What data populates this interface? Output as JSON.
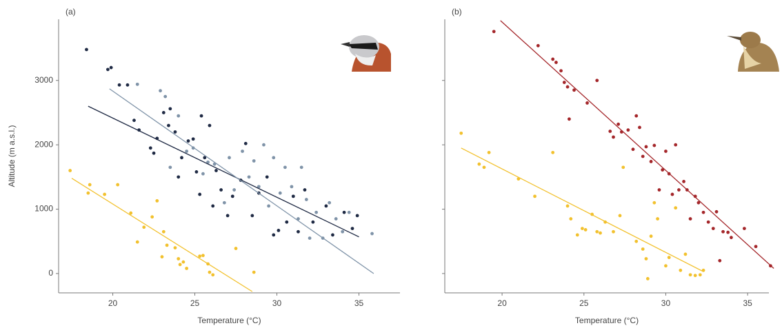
{
  "chart_data": [
    {
      "type": "scatter",
      "annotation": "(a)",
      "x_label": "Temperature (°C)",
      "y_label": "Altitude (m a.s.l.)",
      "xlim": [
        16.7,
        37.5
      ],
      "ylim": [
        -300,
        3950
      ],
      "xticks": [
        20,
        25,
        30,
        35
      ],
      "yticks": [
        0,
        1000,
        2000,
        3000
      ],
      "show_ytick_labels": true,
      "series": [
        {
          "color": "#f2c12e",
          "x": [
            17.4,
            18.5,
            18.6,
            19.5,
            20.3,
            21.1,
            21.5,
            21.9,
            22.4,
            22.7,
            23.0,
            23.1,
            23.3,
            23.8,
            24.0,
            24.1,
            24.3,
            24.5,
            25.3,
            25.5,
            25.8,
            25.9,
            26.1,
            27.5,
            28.6
          ],
          "values": [
            1600,
            1250,
            1380,
            1230,
            1380,
            940,
            490,
            720,
            880,
            1130,
            260,
            650,
            440,
            400,
            230,
            140,
            180,
            80,
            270,
            280,
            150,
            20,
            -20,
            390,
            20
          ],
          "trend": {
            "x": [
              17.5,
              28.5
            ],
            "values": [
              1480,
              -280
            ]
          }
        },
        {
          "color": "#1f2a44",
          "x": [
            18.4,
            19.7,
            19.9,
            20.4,
            20.9,
            21.3,
            21.6,
            22.3,
            22.5,
            22.7,
            23.1,
            23.4,
            23.5,
            23.8,
            24.0,
            24.2,
            24.6,
            24.9,
            25.1,
            25.3,
            25.4,
            25.6,
            25.9,
            26.1,
            26.3,
            26.6,
            27.0,
            27.3,
            27.8,
            28.1,
            28.5,
            28.9,
            29.4,
            29.8,
            30.1,
            30.6,
            31.0,
            31.3,
            31.7,
            32.2,
            33.0,
            33.4,
            34.1,
            34.6,
            34.9
          ],
          "values": [
            3480,
            3170,
            3200,
            2930,
            2930,
            2380,
            2230,
            1950,
            1870,
            2100,
            2500,
            2300,
            2560,
            2200,
            1500,
            1800,
            2060,
            2090,
            1580,
            1230,
            2450,
            1800,
            2300,
            1050,
            1600,
            1300,
            900,
            1200,
            1450,
            2020,
            900,
            1250,
            1500,
            600,
            670,
            800,
            1200,
            650,
            1300,
            800,
            1050,
            600,
            950,
            700,
            900
          ],
          "trend": {
            "x": [
              18.5,
              35
            ],
            "values": [
              2600,
              570
            ]
          }
        },
        {
          "color": "#7f93a8",
          "x": [
            21.5,
            22.9,
            23.2,
            23.5,
            24.0,
            24.5,
            24.9,
            25.5,
            25.8,
            26.2,
            26.8,
            27.1,
            27.4,
            27.9,
            28.3,
            28.6,
            28.9,
            29.2,
            29.5,
            29.8,
            30.2,
            30.5,
            30.9,
            31.3,
            31.5,
            31.8,
            32.0,
            32.4,
            32.8,
            33.2,
            33.6,
            34.0,
            34.4,
            35.8
          ],
          "values": [
            2940,
            2840,
            2750,
            1650,
            2450,
            1900,
            1950,
            1550,
            1730,
            1700,
            1100,
            1800,
            1300,
            1900,
            1500,
            1750,
            1350,
            2000,
            1050,
            1800,
            1250,
            1650,
            1350,
            850,
            1650,
            1150,
            550,
            950,
            550,
            1100,
            850,
            650,
            950,
            620
          ],
          "trend": {
            "x": [
              19.8,
              35.9
            ],
            "values": [
              2870,
              0
            ]
          }
        }
      ]
    },
    {
      "type": "scatter",
      "annotation": "(b)",
      "x_label": "Temperature (°C)",
      "xlim": [
        16.5,
        36.3
      ],
      "ylim": [
        -300,
        3950
      ],
      "xticks": [
        20,
        25,
        30,
        35
      ],
      "yticks": [
        0,
        1000,
        2000,
        3000
      ],
      "show_ytick_labels": false,
      "series": [
        {
          "color": "#f2c12e",
          "x": [
            17.5,
            18.6,
            18.9,
            19.2,
            21.0,
            22.0,
            23.1,
            24.0,
            24.2,
            24.6,
            24.9,
            25.1,
            25.5,
            25.8,
            26.0,
            26.3,
            26.8,
            27.2,
            27.4,
            28.2,
            28.6,
            28.8,
            28.9,
            29.1,
            29.3,
            29.5,
            30.0,
            30.2,
            30.6,
            30.9,
            31.2,
            31.5,
            31.8,
            32.1,
            32.3
          ],
          "values": [
            2180,
            1700,
            1650,
            1880,
            1470,
            1200,
            1880,
            1050,
            850,
            600,
            700,
            680,
            920,
            650,
            630,
            800,
            650,
            900,
            1650,
            500,
            380,
            230,
            -80,
            580,
            1100,
            850,
            120,
            250,
            1020,
            50,
            300,
            -20,
            -30,
            -20,
            50
          ],
          "trend": {
            "x": [
              17.5,
              32.3
            ],
            "values": [
              1950,
              30
            ]
          }
        },
        {
          "color": "#a4262a",
          "x": [
            19.5,
            22.2,
            23.1,
            23.3,
            23.6,
            23.8,
            24.0,
            24.1,
            24.4,
            25.2,
            25.8,
            26.6,
            26.8,
            27.1,
            27.3,
            27.7,
            28.0,
            28.2,
            28.4,
            28.6,
            28.8,
            29.1,
            29.3,
            29.6,
            29.8,
            30.0,
            30.2,
            30.4,
            30.6,
            30.8,
            31.1,
            31.3,
            31.5,
            31.8,
            32.0,
            32.3,
            32.6,
            32.9,
            33.1,
            33.3,
            33.5,
            33.8,
            34.0,
            34.8,
            35.5,
            36.4
          ],
          "values": [
            3760,
            3540,
            3330,
            3280,
            3150,
            2970,
            2900,
            2400,
            2850,
            2650,
            3000,
            2210,
            2120,
            2320,
            2200,
            2230,
            1930,
            2450,
            2270,
            1820,
            1970,
            1740,
            1990,
            1300,
            1610,
            1900,
            1550,
            1230,
            2000,
            1300,
            1430,
            1300,
            850,
            1200,
            1100,
            950,
            800,
            700,
            960,
            200,
            650,
            640,
            560,
            700,
            420,
            120
          ],
          "trend": {
            "x": [
              19.9,
              36.6
            ],
            "values": [
              3930,
              80
            ]
          }
        }
      ]
    }
  ]
}
